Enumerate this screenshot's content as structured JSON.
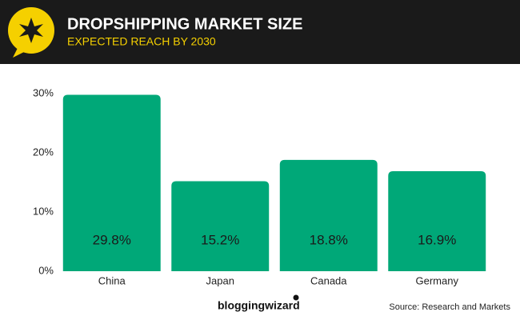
{
  "chart_data": {
    "type": "bar",
    "title": "DROPSHIPPING MARKET SIZE",
    "subtitle": "EXPECTED REACH BY 2030",
    "categories": [
      "China",
      "Japan",
      "Canada",
      "Germany"
    ],
    "values": [
      29.8,
      15.2,
      18.8,
      16.9
    ],
    "value_labels": [
      "29.8%",
      "15.2%",
      "18.8%",
      "16.9%"
    ],
    "color": "#00a878",
    "ylim": [
      0,
      30
    ],
    "yticks": [
      {
        "value": 0,
        "label": "0%"
      },
      {
        "value": 10,
        "label": "10%"
      },
      {
        "value": 20,
        "label": "20%"
      },
      {
        "value": 30,
        "label": "30%"
      }
    ],
    "grid": false,
    "brand": "bloggingwizard",
    "source": "Source: Research and Markets"
  }
}
